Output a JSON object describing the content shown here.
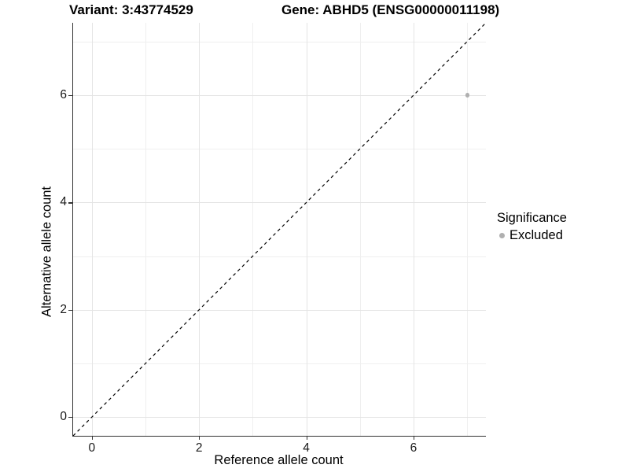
{
  "chart_data": {
    "type": "scatter",
    "title_left": "Variant: 3:43774529",
    "title_right": "Gene: ABHD5 (ENSG00000011198)",
    "xlabel": "Reference allele count",
    "ylabel": "Alternative allele count",
    "xlim": [
      -0.35,
      7.35
    ],
    "ylim": [
      -0.35,
      7.35
    ],
    "major_ticks": [
      0,
      2,
      4,
      6
    ],
    "minor_ticks": [
      1,
      3,
      5,
      7
    ],
    "grid": true,
    "points": [
      {
        "x": 7,
        "y": 6,
        "series": "Excluded"
      }
    ],
    "identity_line": {
      "style": "dashed",
      "from": [
        -0.35,
        -0.35
      ],
      "to": [
        7.35,
        7.35
      ]
    },
    "legend": {
      "position": "right",
      "title": "Significance",
      "entries": [
        {
          "label": "Excluded",
          "color": "#b0b0b0"
        }
      ]
    },
    "colors": {
      "point": "#b0b0b0",
      "grid_major": "#e4e4e4",
      "grid_minor": "#efefef",
      "axis_line": "#333333",
      "tick_mark": "#333333",
      "dashed_line": "#000000",
      "background": "#ffffff"
    }
  }
}
